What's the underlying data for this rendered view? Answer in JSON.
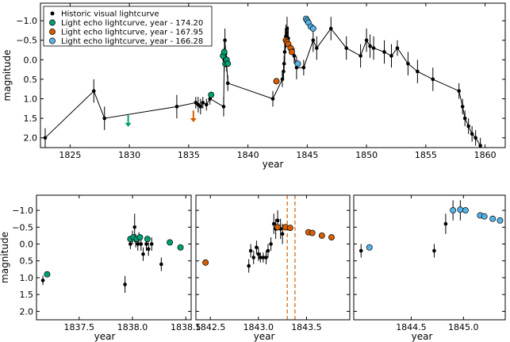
{
  "chart_data": [
    {
      "type": "scatter",
      "xlabel": "year",
      "ylabel": "magnitude",
      "xlim": [
        1822.5,
        1861.7
      ],
      "ylim": [
        2.25,
        -1.45
      ],
      "y_inverted": true,
      "xticks": [
        1825,
        1830,
        1835,
        1840,
        1845,
        1850,
        1855,
        1860
      ],
      "yticks": [
        -1.0,
        -0.5,
        0.0,
        0.5,
        1.0,
        1.5,
        2.0
      ],
      "xtick_labels": [
        "1825",
        "1830",
        "1835",
        "1840",
        "1845",
        "1850",
        "1855",
        "1860"
      ],
      "ytick_labels": [
        "−1.0",
        "−0.5",
        "0.0",
        "0.5",
        "1.0",
        "1.5",
        "2.0"
      ],
      "legend": {
        "position": "top-left",
        "entries": [
          {
            "label": "Historic visual lightcurve",
            "color": "#000000"
          },
          {
            "label": "Light echo lightcurve, year - 174.20",
            "color": "#009e73"
          },
          {
            "label": "Light echo lightcurve, year - 167.95",
            "color": "#d55e00"
          },
          {
            "label": "Light echo lightcurve, year - 166.28",
            "color": "#56b4e9"
          }
        ]
      },
      "arrows": [
        {
          "x": 1829.9,
          "y_from": 1.42,
          "y_to": 1.72,
          "color": "#009e73"
        },
        {
          "x": 1835.4,
          "y_from": 1.3,
          "y_to": 1.6,
          "color": "#d55e00"
        }
      ],
      "series": [
        {
          "name": "Historic visual lightcurve",
          "color": "#000000",
          "line": true,
          "points": [
            {
              "x": 1822.9,
              "y": 2.0,
              "err": 0.25
            },
            {
              "x": 1827.0,
              "y": 0.8,
              "err": 0.3
            },
            {
              "x": 1827.9,
              "y": 1.5,
              "err": 0.3
            },
            {
              "x": 1834.0,
              "y": 1.2,
              "err": 0.3
            },
            {
              "x": 1835.6,
              "y": 1.1,
              "err": 0.15
            },
            {
              "x": 1835.8,
              "y": 1.15,
              "err": 0.2
            },
            {
              "x": 1836.0,
              "y": 1.2,
              "err": 0.2
            },
            {
              "x": 1836.2,
              "y": 1.1,
              "err": 0.15
            },
            {
              "x": 1836.5,
              "y": 1.15,
              "err": 0.15
            },
            {
              "x": 1836.8,
              "y": 1.0,
              "err": 0.15
            },
            {
              "x": 1837.95,
              "y": 1.2,
              "err": 0.25
            },
            {
              "x": 1838.0,
              "y": 0.0,
              "err": 0.3
            },
            {
              "x": 1838.02,
              "y": -0.2,
              "err": 0.3
            },
            {
              "x": 1838.06,
              "y": -0.5,
              "err": 0.3
            },
            {
              "x": 1838.1,
              "y": -0.15,
              "err": 0.2
            },
            {
              "x": 1838.15,
              "y": 0.0,
              "err": 0.2
            },
            {
              "x": 1838.2,
              "y": 0.1,
              "err": 0.2
            },
            {
              "x": 1838.3,
              "y": 0.6,
              "err": 0.2
            },
            {
              "x": 1842.1,
              "y": 1.0,
              "err": 0.2
            },
            {
              "x": 1842.9,
              "y": 0.5,
              "err": 0.2
            },
            {
              "x": 1843.0,
              "y": 0.3,
              "err": 0.2
            },
            {
              "x": 1843.05,
              "y": 0.1,
              "err": 0.2
            },
            {
              "x": 1843.1,
              "y": -0.2,
              "err": 0.25
            },
            {
              "x": 1843.15,
              "y": -0.5,
              "err": 0.3
            },
            {
              "x": 1843.2,
              "y": -0.6,
              "err": 0.3
            },
            {
              "x": 1843.3,
              "y": -0.8,
              "err": 0.3
            },
            {
              "x": 1843.4,
              "y": -0.55,
              "err": 0.3
            },
            {
              "x": 1843.9,
              "y": -0.1,
              "err": 0.2
            },
            {
              "x": 1844.1,
              "y": 0.2,
              "err": 0.3
            },
            {
              "x": 1844.7,
              "y": 0.2,
              "err": 0.2
            },
            {
              "x": 1845.5,
              "y": -0.5,
              "err": 0.3
            },
            {
              "x": 1845.8,
              "y": -0.3,
              "err": 0.3
            },
            {
              "x": 1847.0,
              "y": -0.8,
              "err": 0.3
            },
            {
              "x": 1848.3,
              "y": -0.3,
              "err": 0.3
            },
            {
              "x": 1849.5,
              "y": -0.1,
              "err": 0.3
            },
            {
              "x": 1850.0,
              "y": -0.5,
              "err": 0.3
            },
            {
              "x": 1850.3,
              "y": -0.35,
              "err": 0.3
            },
            {
              "x": 1850.6,
              "y": -0.3,
              "err": 0.3
            },
            {
              "x": 1851.5,
              "y": -0.2,
              "err": 0.3
            },
            {
              "x": 1852.1,
              "y": -0.1,
              "err": 0.3
            },
            {
              "x": 1852.6,
              "y": -0.3,
              "err": 0.2
            },
            {
              "x": 1853.5,
              "y": 0.1,
              "err": 0.3
            },
            {
              "x": 1854.3,
              "y": 0.3,
              "err": 0.3
            },
            {
              "x": 1855.6,
              "y": 0.5,
              "err": 0.3
            },
            {
              "x": 1857.8,
              "y": 0.8,
              "err": 0.2
            },
            {
              "x": 1858.1,
              "y": 1.2,
              "err": 0.2
            },
            {
              "x": 1858.3,
              "y": 1.5,
              "err": 0.2
            },
            {
              "x": 1858.6,
              "y": 1.7,
              "err": 0.2
            },
            {
              "x": 1858.9,
              "y": 1.9,
              "err": 0.2
            },
            {
              "x": 1859.2,
              "y": 2.0,
              "err": 0.2
            },
            {
              "x": 1859.6,
              "y": 2.2,
              "err": 0.2
            }
          ]
        },
        {
          "name": "Light echo lightcurve, year - 174.20",
          "color": "#009e73",
          "points": [
            {
              "x": 1836.9,
              "y": 0.9
            },
            {
              "x": 1837.9,
              "y": -0.1
            },
            {
              "x": 1838.0,
              "y": -0.2
            },
            {
              "x": 1838.1,
              "y": 0.1
            },
            {
              "x": 1838.2,
              "y": 0.0
            },
            {
              "x": 1838.3,
              "y": 0.1
            }
          ]
        },
        {
          "name": "Light echo lightcurve, year - 167.95",
          "color": "#d55e00",
          "points": [
            {
              "x": 1842.4,
              "y": 0.55
            },
            {
              "x": 1843.2,
              "y": -0.5
            },
            {
              "x": 1843.3,
              "y": -0.45
            },
            {
              "x": 1843.4,
              "y": -0.4
            },
            {
              "x": 1843.6,
              "y": -0.3
            },
            {
              "x": 1843.7,
              "y": -0.2
            }
          ]
        },
        {
          "name": "Light echo lightcurve, year - 166.28",
          "color": "#56b4e9",
          "points": [
            {
              "x": 1844.2,
              "y": 0.1
            },
            {
              "x": 1844.9,
              "y": -1.05
            },
            {
              "x": 1845.0,
              "y": -1.0
            },
            {
              "x": 1845.1,
              "y": -0.95
            },
            {
              "x": 1845.3,
              "y": -0.85
            },
            {
              "x": 1845.5,
              "y": -0.8
            }
          ]
        }
      ]
    },
    {
      "type": "scatter",
      "xlabel": "year",
      "ylabel": "magnitude",
      "xlim": [
        1837.1,
        1838.55
      ],
      "ylim": [
        2.25,
        -1.45
      ],
      "y_inverted": true,
      "xticks": [
        1837.5,
        1838.0,
        1838.5
      ],
      "yticks": [
        -1.0,
        -0.5,
        0.0,
        0.5,
        1.0,
        1.5,
        2.0
      ],
      "xtick_labels": [
        "1837.5",
        "1838.0",
        "1838.5"
      ],
      "ytick_labels": [
        "−1.0",
        "−0.5",
        "0.0",
        "0.5",
        "1.0",
        "1.5",
        "2.0"
      ],
      "series": [
        {
          "name": "Historic visual lightcurve",
          "color": "#000000",
          "points": [
            {
              "x": 1837.16,
              "y": 1.08,
              "err": 0.14
            },
            {
              "x": 1837.93,
              "y": 1.2,
              "err": 0.25
            },
            {
              "x": 1837.98,
              "y": 0.0,
              "err": 0.15
            },
            {
              "x": 1838.0,
              "y": -0.2,
              "err": 0.2
            },
            {
              "x": 1838.02,
              "y": -0.5,
              "err": 0.4
            },
            {
              "x": 1838.03,
              "y": -0.1,
              "err": 0.2
            },
            {
              "x": 1838.05,
              "y": 0.0,
              "err": 0.2
            },
            {
              "x": 1838.06,
              "y": -0.2,
              "err": 0.15
            },
            {
              "x": 1838.08,
              "y": 0.0,
              "err": 0.2
            },
            {
              "x": 1838.1,
              "y": 0.3,
              "err": 0.2
            },
            {
              "x": 1838.13,
              "y": 0.0,
              "err": 0.2
            },
            {
              "x": 1838.15,
              "y": 0.15,
              "err": 0.2
            },
            {
              "x": 1838.18,
              "y": 0.0,
              "err": 0.2
            },
            {
              "x": 1838.27,
              "y": 0.6,
              "err": 0.2
            }
          ]
        },
        {
          "name": "Light echo lightcurve, year - 174.20",
          "color": "#009e73",
          "points": [
            {
              "x": 1837.2,
              "y": 0.9
            },
            {
              "x": 1837.98,
              "y": -0.15
            },
            {
              "x": 1838.01,
              "y": -0.2
            },
            {
              "x": 1838.04,
              "y": -0.15
            },
            {
              "x": 1838.07,
              "y": -0.2
            },
            {
              "x": 1838.14,
              "y": -0.15
            },
            {
              "x": 1838.35,
              "y": -0.05
            },
            {
              "x": 1838.45,
              "y": 0.1
            }
          ]
        }
      ]
    },
    {
      "type": "scatter",
      "xlabel": "year",
      "xlim": [
        1842.35,
        1843.95
      ],
      "ylim": [
        2.25,
        -1.45
      ],
      "y_inverted": true,
      "xticks": [
        1842.5,
        1843.0,
        1843.5
      ],
      "xtick_labels": [
        "1842.5",
        "1843.0",
        "1843.5"
      ],
      "vlines": [
        {
          "x": 1843.3,
          "color": "#d55e00",
          "style": "dashed"
        },
        {
          "x": 1843.38,
          "color": "#d55e00",
          "style": "dashed"
        }
      ],
      "series": [
        {
          "name": "Historic visual lightcurve",
          "color": "#000000",
          "points": [
            {
              "x": 1842.9,
              "y": 0.65,
              "err": 0.2
            },
            {
              "x": 1842.92,
              "y": 0.2,
              "err": 0.2
            },
            {
              "x": 1842.95,
              "y": 0.4,
              "err": 0.2
            },
            {
              "x": 1842.98,
              "y": 0.1,
              "err": 0.2
            },
            {
              "x": 1843.0,
              "y": 0.3,
              "err": 0.2
            },
            {
              "x": 1843.02,
              "y": 0.4,
              "err": 0.15
            },
            {
              "x": 1843.05,
              "y": 0.4,
              "err": 0.15
            },
            {
              "x": 1843.08,
              "y": 0.4,
              "err": 0.2
            },
            {
              "x": 1843.1,
              "y": 0.2,
              "err": 0.2
            },
            {
              "x": 1843.13,
              "y": 0.0,
              "err": 0.2
            },
            {
              "x": 1843.16,
              "y": -0.6,
              "err": 0.3
            },
            {
              "x": 1843.18,
              "y": -0.45,
              "err": 0.3
            },
            {
              "x": 1843.2,
              "y": -0.7,
              "err": 0.3
            },
            {
              "x": 1843.23,
              "y": -0.45,
              "err": 0.3
            },
            {
              "x": 1843.25,
              "y": -0.3,
              "err": 0.3
            }
          ]
        },
        {
          "name": "Light echo lightcurve, year - 167.95",
          "color": "#d55e00",
          "points": [
            {
              "x": 1842.45,
              "y": 0.55
            },
            {
              "x": 1843.2,
              "y": -0.5
            },
            {
              "x": 1843.28,
              "y": -0.5
            },
            {
              "x": 1843.33,
              "y": -0.48
            },
            {
              "x": 1843.52,
              "y": -0.35
            },
            {
              "x": 1843.56,
              "y": -0.33
            },
            {
              "x": 1843.66,
              "y": -0.25
            },
            {
              "x": 1843.76,
              "y": -0.2
            }
          ]
        }
      ]
    },
    {
      "type": "scatter",
      "xlabel": "year",
      "xlim": [
        1843.95,
        1845.4
      ],
      "ylim": [
        2.25,
        -1.45
      ],
      "y_inverted": true,
      "xticks": [
        1844.5,
        1845.0
      ],
      "xtick_labels": [
        "1844.5",
        "1845.0"
      ],
      "series": [
        {
          "name": "Historic visual lightcurve",
          "color": "#000000",
          "points": [
            {
              "x": 1844.02,
              "y": 0.2,
              "err": 0.2
            },
            {
              "x": 1844.72,
              "y": 0.2,
              "err": 0.2
            },
            {
              "x": 1844.83,
              "y": -0.6,
              "err": 0.3
            },
            {
              "x": 1844.9,
              "y": -1.0,
              "err": 0.3
            },
            {
              "x": 1844.97,
              "y": -1.0,
              "err": 0.3
            }
          ]
        },
        {
          "name": "Light echo lightcurve, year - 166.28",
          "color": "#56b4e9",
          "points": [
            {
              "x": 1844.1,
              "y": 0.1
            },
            {
              "x": 1844.9,
              "y": -1.0
            },
            {
              "x": 1844.97,
              "y": -1.02
            },
            {
              "x": 1845.02,
              "y": -1.0
            },
            {
              "x": 1845.16,
              "y": -0.85
            },
            {
              "x": 1845.2,
              "y": -0.82
            },
            {
              "x": 1845.28,
              "y": -0.75
            },
            {
              "x": 1845.35,
              "y": -0.7
            }
          ]
        }
      ]
    }
  ]
}
